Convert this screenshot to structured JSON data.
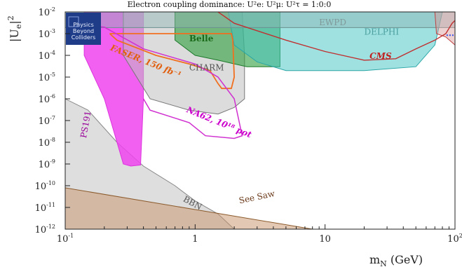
{
  "chart_data": {
    "type": "area",
    "title": "Electron coupling dominance: U²e: U²μ: U²τ = 1:0:0",
    "xlabel": "m_N (GeV)",
    "ylabel": "|U_e|²",
    "x_scale": "log",
    "y_scale": "log",
    "xlim": [
      0.1,
      100
    ],
    "ylim": [
      1e-12,
      0.01
    ],
    "x_ticks": [
      {
        "value": 0.1,
        "base": "10",
        "exp": "-1"
      },
      {
        "value": 1,
        "base": "1",
        "exp": ""
      },
      {
        "value": 10,
        "base": "10",
        "exp": ""
      },
      {
        "value": 100,
        "base": "10",
        "exp": "2"
      }
    ],
    "y_ticks": [
      {
        "value": 0.01,
        "exp": "-2"
      },
      {
        "value": 0.001,
        "exp": "-3"
      },
      {
        "value": 0.0001,
        "exp": "-4"
      },
      {
        "value": 1e-05,
        "exp": "-5"
      },
      {
        "value": 1e-06,
        "exp": "-6"
      },
      {
        "value": 1e-07,
        "exp": "-7"
      },
      {
        "value": 1e-08,
        "exp": "-8"
      },
      {
        "value": 1e-09,
        "exp": "-9"
      },
      {
        "value": 1e-10,
        "exp": "-10"
      },
      {
        "value": 1e-11,
        "exp": "-11"
      },
      {
        "value": 1e-12,
        "exp": "-12"
      }
    ],
    "logo": {
      "lines": [
        "Physics",
        "Beyond",
        "Colliders"
      ],
      "color": "#1f3c88"
    },
    "regions": [
      {
        "name": "BBN",
        "fill": "#bdbdbd",
        "stroke": "#888888",
        "opacity": 0.5,
        "label_pos": [
          0.8,
          2e-11
        ],
        "label_color": "#555555",
        "points": [
          [
            0.1,
            1e-12
          ],
          [
            0.1,
            1e-06
          ],
          [
            0.15,
            3e-07
          ],
          [
            0.25,
            1e-08
          ],
          [
            0.4,
            8e-10
          ],
          [
            0.7,
            1e-10
          ],
          [
            1,
            2e-11
          ],
          [
            1.5,
            5e-12
          ],
          [
            2,
            1e-12
          ]
        ]
      },
      {
        "name": "See Saw",
        "fill": "#c8926a",
        "stroke": "#8b5a2b",
        "opacity": 0.5,
        "label_pos": [
          2.2,
          1.5e-11
        ],
        "label_color": "#6b3a1b",
        "points": [
          [
            0.1,
            1e-12
          ],
          [
            0.1,
            8e-11
          ],
          [
            1,
            8e-12
          ],
          [
            10,
            8e-13
          ],
          [
            30,
            2e-13
          ],
          [
            100,
            1e-13
          ],
          [
            100,
            1e-12
          ]
        ]
      },
      {
        "name": "PS191",
        "fill": "#ee44ee",
        "stroke": "#dd33dd",
        "opacity": 0.85,
        "label_pos": [
          0.145,
          1.5e-08
        ],
        "label_color": "#990099",
        "points": [
          [
            0.14,
            0.01
          ],
          [
            0.14,
            0.0001
          ],
          [
            0.2,
            1e-06
          ],
          [
            0.28,
            1e-09
          ],
          [
            0.32,
            8e-10
          ],
          [
            0.38,
            9e-10
          ],
          [
            0.4,
            1e-06
          ],
          [
            0.4,
            0.01
          ]
        ]
      },
      {
        "name": "CHARM",
        "fill": "#c0c0c0",
        "stroke": "#777777",
        "opacity": 0.55,
        "label_pos": [
          0.9,
          2e-05
        ],
        "label_color": "#555555",
        "points": [
          [
            0.28,
            0.01
          ],
          [
            0.28,
            0.0001
          ],
          [
            0.45,
            1e-06
          ],
          [
            0.9,
            3e-07
          ],
          [
            1.5,
            2e-07
          ],
          [
            2,
            4e-07
          ],
          [
            2.4,
            1e-06
          ],
          [
            2.4,
            0.0001
          ],
          [
            2.3,
            0.01
          ]
        ]
      },
      {
        "name": "Belle",
        "fill": "#2e9e3e",
        "stroke": "#1d7a2b",
        "opacity": 0.6,
        "label_pos": [
          0.9,
          0.00045
        ],
        "label_color": "#1a6a1a",
        "points": [
          [
            0.7,
            0.01
          ],
          [
            0.7,
            0.0005
          ],
          [
            1,
            0.0001
          ],
          [
            1.5,
            6e-05
          ],
          [
            2.5,
            3e-05
          ],
          [
            4.5,
            3e-05
          ],
          [
            4.5,
            0.01
          ]
        ]
      },
      {
        "name": "DELPHI",
        "fill": "#40c4c4",
        "stroke": "#2aa6a6",
        "opacity": 0.5,
        "label_pos": [
          20,
          0.0009
        ],
        "label_color": "#4a9e9e",
        "points": [
          [
            1.8,
            0.01
          ],
          [
            2,
            0.0003
          ],
          [
            3,
            5e-05
          ],
          [
            5,
            2e-05
          ],
          [
            20,
            2e-05
          ],
          [
            50,
            3e-05
          ],
          [
            70,
            0.0003
          ],
          [
            80,
            0.01
          ]
        ]
      },
      {
        "name": "EWPD",
        "fill": "#8fb3b3",
        "stroke": "#6a9090",
        "opacity": 0.45,
        "label_pos": [
          9,
          0.0024
        ],
        "label_color": "#7f9a9a",
        "points": [
          [
            0.1,
            0.01
          ],
          [
            0.1,
            0.0019
          ],
          [
            100,
            0.0019
          ],
          [
            100,
            0.01
          ]
        ]
      },
      {
        "name": "CMS upper",
        "fill": "#d99a9a",
        "stroke": "#c04040",
        "opacity": 0.45,
        "label_pos": null,
        "label_color": "#c02020",
        "points": [
          [
            70,
            0.01
          ],
          [
            72,
            0.001
          ],
          [
            85,
            0.0007
          ],
          [
            100,
            0.0003
          ],
          [
            100,
            0.01
          ]
        ]
      }
    ],
    "curves": [
      {
        "name": "FASER, 150 fb⁻¹",
        "color": "#f07020",
        "width": 1.8,
        "label_pos": [
          0.22,
          0.00018
        ],
        "label_color": "#e06010",
        "label_rotate": 22,
        "points": [
          [
            0.22,
            0.001
          ],
          [
            0.25,
            0.0005
          ],
          [
            0.5,
            0.0001
          ],
          [
            0.9,
            4e-05
          ],
          [
            1.3,
            2e-05
          ],
          [
            1.5,
            5e-06
          ],
          [
            1.6,
            3e-06
          ],
          [
            1.9,
            3e-06
          ],
          [
            2,
            1e-05
          ],
          [
            1.95,
            0.0005
          ],
          [
            1.9,
            0.001
          ],
          [
            0.22,
            0.001
          ]
        ]
      },
      {
        "name": "NA62, 10¹⁸ pot",
        "color": "#d030d0",
        "width": 1.5,
        "label_pos": [
          0.85,
          2.5e-07
        ],
        "label_color": "#cc00cc",
        "label_rotate": 22,
        "points": [
          [
            0.14,
            0.0025
          ],
          [
            0.2,
            0.002
          ],
          [
            0.4,
            0.0002
          ],
          [
            1,
            4e-05
          ],
          [
            1.5,
            1e-05
          ],
          [
            2,
            1e-06
          ],
          [
            2.3,
            2e-08
          ],
          [
            2,
            1.5e-08
          ],
          [
            1.2,
            2e-08
          ],
          [
            0.9,
            8e-08
          ],
          [
            0.45,
            3e-07
          ],
          [
            0.4,
            1e-06
          ]
        ]
      },
      {
        "name": "CMS",
        "color": "#c03030",
        "width": 1.4,
        "label_pos": [
          22,
          7e-05
        ],
        "label_color": "#c02020",
        "label_rotate": 0,
        "points": [
          [
            1.5,
            0.01
          ],
          [
            2,
            0.003
          ],
          [
            5,
            0.0005
          ],
          [
            10,
            0.00015
          ],
          [
            20,
            6e-05
          ],
          [
            35,
            7e-05
          ],
          [
            50,
            0.0002
          ],
          [
            70,
            0.0005
          ],
          [
            85,
            0.001
          ],
          [
            95,
            0.003
          ],
          [
            100,
            0.004
          ]
        ]
      },
      {
        "name": "",
        "color": "#3050f0",
        "width": 2,
        "dash": "2,2",
        "label_pos": null,
        "label_color": "#3050f0",
        "label_rotate": 0,
        "points": [
          [
            86,
            0.00085
          ],
          [
            100,
            0.00085
          ]
        ]
      }
    ]
  }
}
